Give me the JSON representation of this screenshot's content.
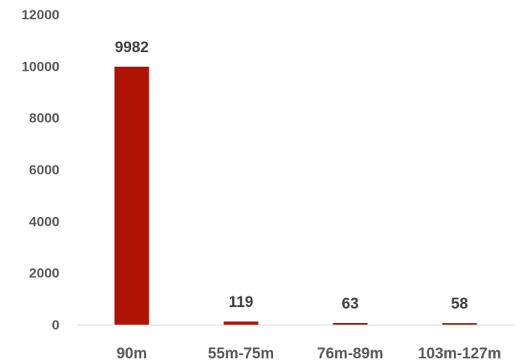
{
  "chart_data": {
    "type": "bar",
    "categories": [
      "90m",
      "55m-75m",
      "76m-89m",
      "103m-127m"
    ],
    "values": [
      9982,
      119,
      63,
      58
    ],
    "data_labels": [
      "9982",
      "119",
      "63",
      "58"
    ],
    "y_ticks": [
      "0",
      "2000",
      "4000",
      "6000",
      "8000",
      "10000",
      "12000"
    ],
    "ylim": [
      0,
      12000
    ],
    "grid": false,
    "legend": "none",
    "title": "",
    "xlabel": "",
    "ylabel": ""
  },
  "colors": {
    "bar": "#B01205",
    "axis": "#D9D9D9"
  }
}
